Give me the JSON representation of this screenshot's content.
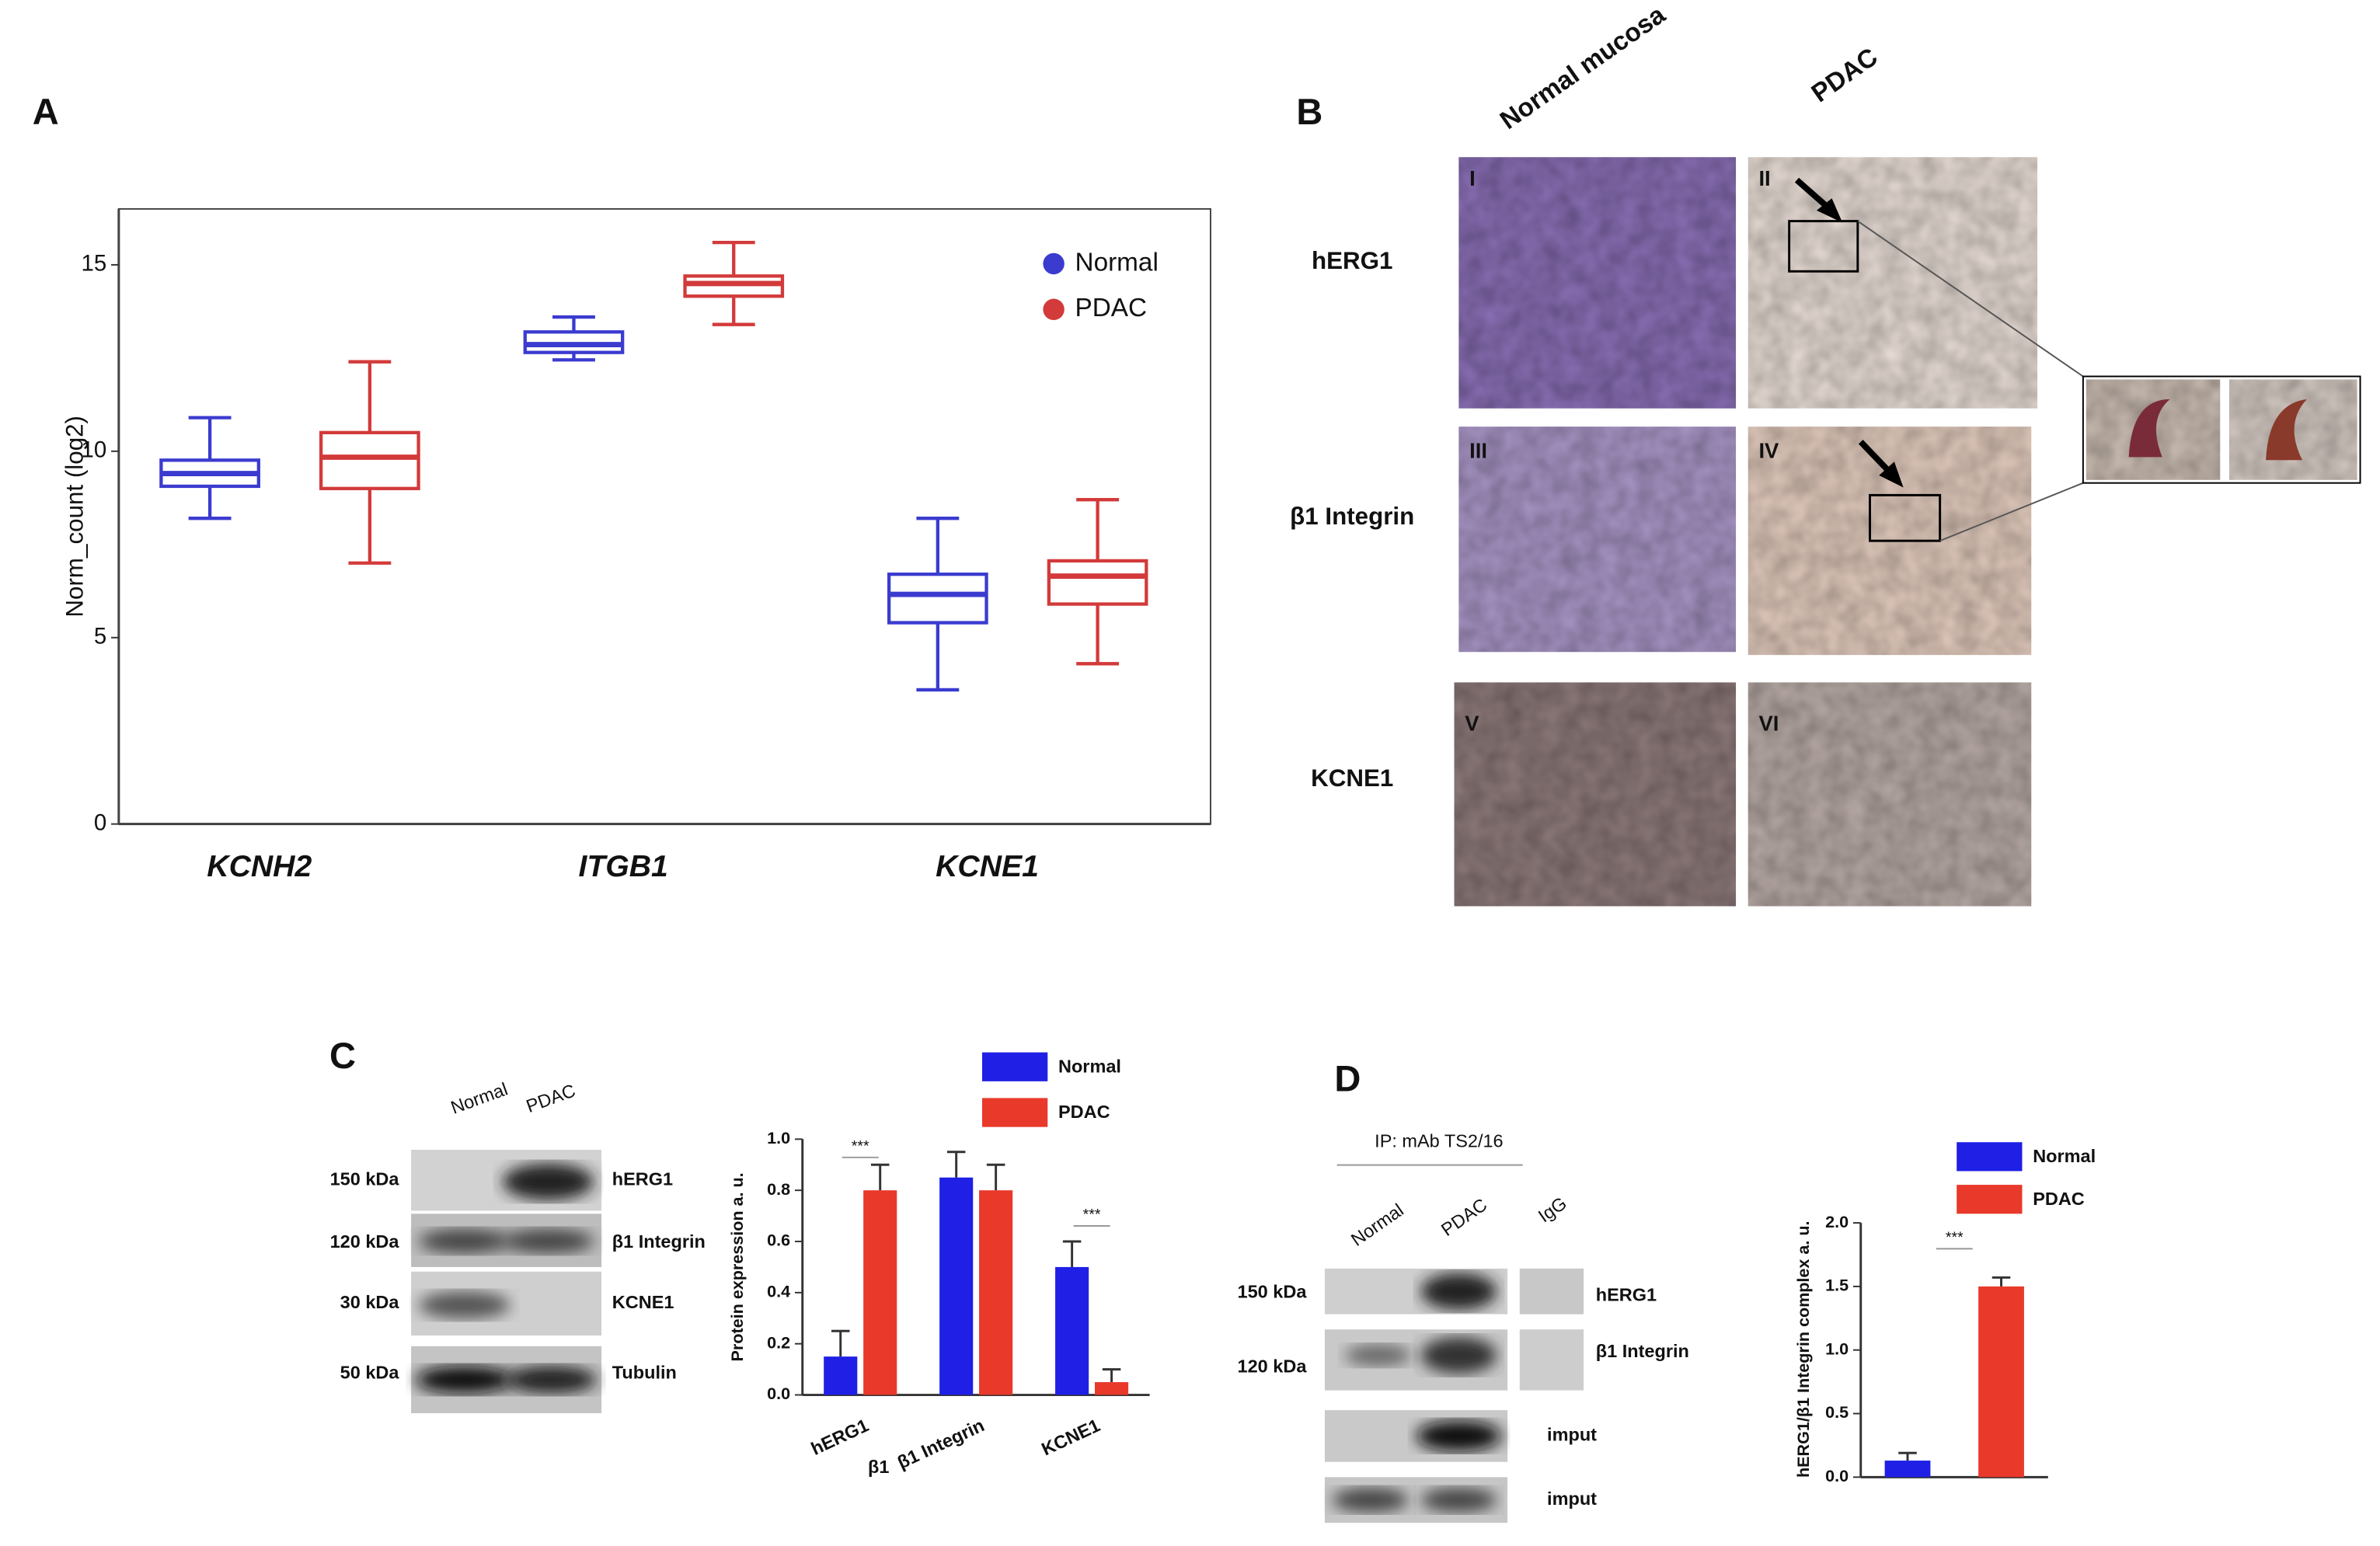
{
  "panel_letters": [
    "A",
    "B",
    "C",
    "D"
  ],
  "chart_data": [
    {
      "type": "box",
      "ylabel": "Norm_count (log2)",
      "categories": [
        "KCNH2",
        "ITGB1",
        "KCNE1"
      ],
      "series": [
        {
          "name": "Normal",
          "color": "#3b3bd0",
          "values": [
            {
              "min": 8.2,
              "q1": 9.06,
              "median": 9.4,
              "q3": 9.76,
              "max": 10.9
            },
            {
              "min": 12.45,
              "q1": 12.65,
              "median": 12.86,
              "q3": 13.2,
              "max": 13.6
            },
            {
              "min": 3.6,
              "q1": 5.4,
              "median": 6.16,
              "q3": 6.7,
              "max": 8.2
            }
          ]
        },
        {
          "name": "PDAC",
          "color": "#d33a3a",
          "values": [
            {
              "min": 7.0,
              "q1": 9.0,
              "median": 9.84,
              "q3": 10.5,
              "max": 12.4
            },
            {
              "min": 13.4,
              "q1": 14.16,
              "median": 14.5,
              "q3": 14.7,
              "max": 15.6
            },
            {
              "min": 4.3,
              "q1": 5.9,
              "median": 6.65,
              "q3": 7.06,
              "max": 8.7
            }
          ]
        }
      ],
      "ylim": [
        0,
        16.5
      ],
      "yticks": [
        0,
        5,
        10,
        15
      ]
    },
    {
      "type": "bar",
      "ylabel": "Protein expression a. u.",
      "categories": [
        "hERG1",
        "β1 Integrin",
        "KCNE1"
      ],
      "extra_label": "β1",
      "series": [
        {
          "name": "Normal",
          "color": "#1f1fe6",
          "values": [
            0.15,
            0.85,
            0.5
          ],
          "errors": [
            0.1,
            0.1,
            0.1
          ]
        },
        {
          "name": "PDAC",
          "color": "#e8392b",
          "values": [
            0.8,
            0.8,
            0.05
          ],
          "errors": [
            0.1,
            0.1,
            0.05
          ]
        }
      ],
      "ylim": [
        0,
        1.0
      ],
      "yticks": [
        {
          "value": 0,
          "label": "0.0"
        },
        {
          "value": 0.2,
          "label": "0.2"
        },
        {
          "value": 0.4,
          "label": "0.4"
        },
        {
          "value": 0.6,
          "label": "0.6"
        },
        {
          "value": 0.8,
          "label": "0.8"
        },
        {
          "value": 1.0,
          "label": "1.0"
        }
      ],
      "annotations": [
        "***",
        "***"
      ]
    },
    {
      "type": "bar",
      "ylabel": "hERG1/β1 Integrin complex a. u.",
      "series": [
        {
          "name": "Normal",
          "color": "#1f1fe6",
          "values": [
            0.13
          ],
          "errors": [
            0.06
          ]
        },
        {
          "name": "PDAC",
          "color": "#e8392b",
          "values": [
            1.5
          ],
          "errors": [
            0.07
          ]
        }
      ],
      "ylim": [
        0,
        2.0
      ],
      "yticks": [
        {
          "value": 0,
          "label": "0.0"
        },
        {
          "value": 0.5,
          "label": "0.5"
        },
        {
          "value": 1.0,
          "label": "1.0"
        },
        {
          "value": 1.5,
          "label": "1.5"
        },
        {
          "value": 2.0,
          "label": "2.0"
        }
      ],
      "annotations": [
        "***"
      ]
    }
  ],
  "histology": {
    "columns": [
      "Normal mucosa",
      "PDAC"
    ],
    "rows": [
      "hERG1",
      "β1 Integrin",
      "KCNE1"
    ],
    "panels": [
      "I",
      "II",
      "III",
      "IV",
      "V",
      "VI"
    ]
  },
  "western_c": {
    "lanes": [
      "Normal",
      "PDAC"
    ],
    "kda": [
      "150 kDa",
      "120 kDa",
      "30 kDa",
      "50 kDa"
    ],
    "proteins": [
      "hERG1",
      "β1 Integrin",
      "KCNE1",
      "Tubulin"
    ]
  },
  "western_d": {
    "title": "IP: mAb TS2/16",
    "lanes": [
      "Normal",
      "PDAC",
      "IgG"
    ],
    "kda": [
      "150 kDa",
      "120 kDa"
    ],
    "proteins": [
      "hERG1",
      "β1 Integrin",
      "imput",
      "imput"
    ]
  }
}
